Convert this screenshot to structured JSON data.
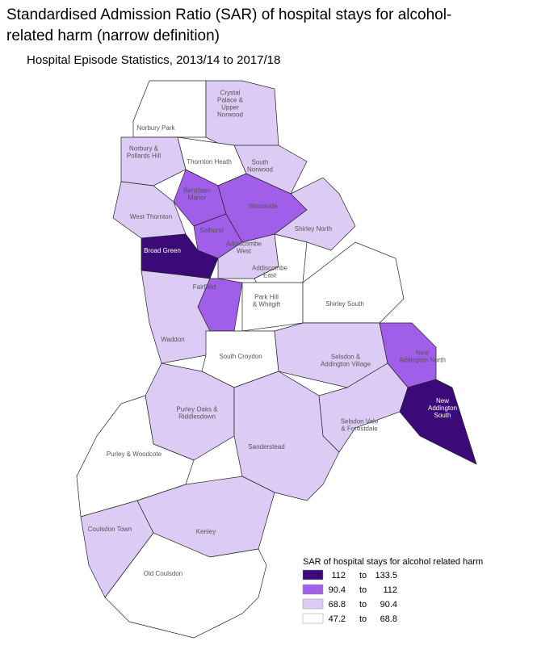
{
  "title": "Standardised Admission Ratio (SAR) of hospital stays for alcohol-related harm (narrow definition)",
  "subtitle": "Hospital Episode Statistics, 2013/14 to 2017/18",
  "legend": {
    "title": "SAR of hospital stays for alcohol related harm",
    "connector": "to",
    "items": [
      {
        "from": 112,
        "to": 133.5,
        "color": "#3c0a78"
      },
      {
        "from": 90.4,
        "to": 112,
        "color": "#a15ee8"
      },
      {
        "from": 68.8,
        "to": 90.4,
        "color": "#dccbf5"
      },
      {
        "from": 47.2,
        "to": 68.8,
        "color": "#ffffff"
      }
    ]
  },
  "wards": [
    {
      "label_lines": [
        "Norbury Park"
      ],
      "class": 3
    },
    {
      "label_lines": [
        "Crystal",
        "Palace &",
        "Upper",
        "Norwood"
      ],
      "class": 2
    },
    {
      "label_lines": [
        "Norbury &",
        "Pollards Hill"
      ],
      "class": 2
    },
    {
      "label_lines": [
        "Thornton Heath"
      ],
      "class": 3
    },
    {
      "label_lines": [
        "South",
        "Norwood"
      ],
      "class": 2
    },
    {
      "label_lines": [
        "Bensham",
        "Manor"
      ],
      "class": 1
    },
    {
      "label_lines": [
        "West Thornton"
      ],
      "class": 2
    },
    {
      "label_lines": [
        "Selhurst"
      ],
      "class": 1
    },
    {
      "label_lines": [
        "Woodside"
      ],
      "class": 1
    },
    {
      "label_lines": [
        "Shirley North"
      ],
      "class": 2
    },
    {
      "label_lines": [
        "Broad Green"
      ],
      "class": 0
    },
    {
      "label_lines": [
        "Addiscombe",
        "West"
      ],
      "class": 2
    },
    {
      "label_lines": [
        "Addiscombe",
        "East"
      ],
      "class": 3
    },
    {
      "label_lines": [
        "Fairfield"
      ],
      "class": 1
    },
    {
      "label_lines": [
        "Waddon"
      ],
      "class": 2
    },
    {
      "label_lines": [
        "Park Hill",
        "& Whitgift"
      ],
      "class": 3
    },
    {
      "label_lines": [
        "Shirley South"
      ],
      "class": 3
    },
    {
      "label_lines": [
        "South Croydon"
      ],
      "class": 3
    },
    {
      "label_lines": [
        "Selsdon &",
        "Addington Village"
      ],
      "class": 2
    },
    {
      "label_lines": [
        "New",
        "Addington North"
      ],
      "class": 1
    },
    {
      "label_lines": [
        "New",
        "Addington",
        "South"
      ],
      "class": 0
    },
    {
      "label_lines": [
        "Purley Oaks &",
        "Riddlesdown"
      ],
      "class": 2
    },
    {
      "label_lines": [
        "Selsdon Vale",
        "& Forestdale"
      ],
      "class": 2
    },
    {
      "label_lines": [
        "Sanderstead"
      ],
      "class": 2
    },
    {
      "label_lines": [
        "Purley & Woodcote"
      ],
      "class": 3
    },
    {
      "label_lines": [
        "Coulsdon Town"
      ],
      "class": 2
    },
    {
      "label_lines": [
        "Kenley"
      ],
      "class": 2
    },
    {
      "label_lines": [
        "Old Coulsdon"
      ],
      "class": 3
    }
  ]
}
